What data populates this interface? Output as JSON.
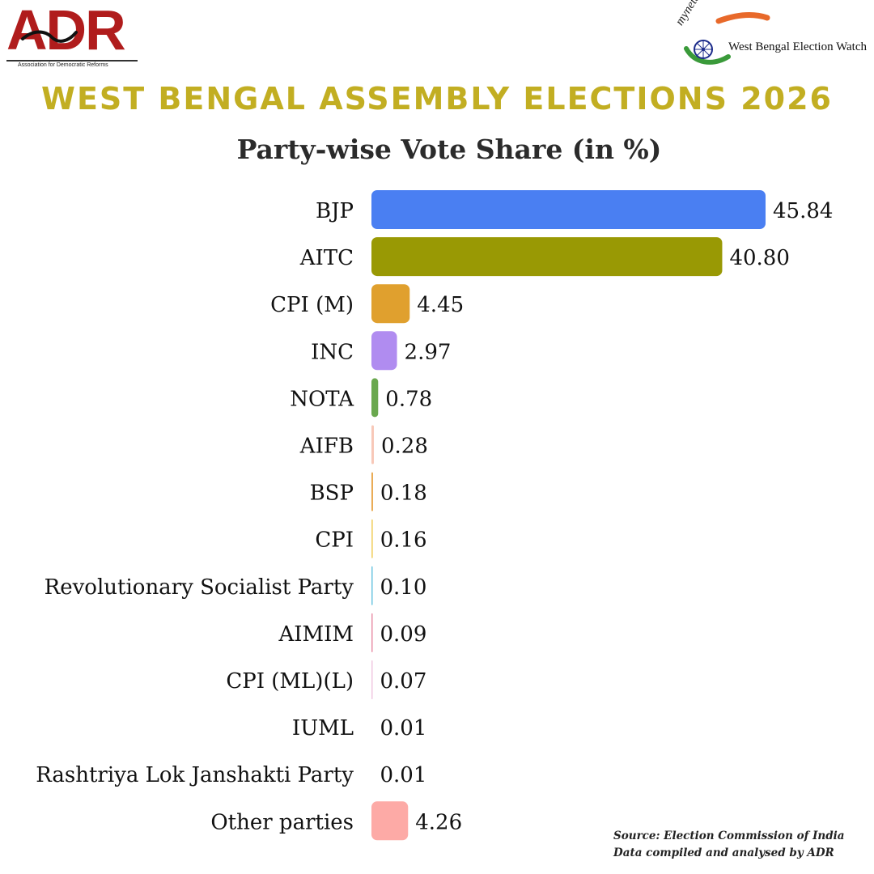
{
  "logos": {
    "adr": {
      "letters": "ADR",
      "tagline": "Association for Democratic Reforms",
      "color": "#b01c1c"
    },
    "myneta": {
      "brand": "myneta.info",
      "title": "West Bengal Election Watch",
      "color_saffron": "#e8692a",
      "color_green": "#3a9a3a",
      "color_navy": "#1a2a8a"
    }
  },
  "header": {
    "title": "WEST BENGAL ASSEMBLY ELECTIONS 2026",
    "title_color": "#c2ae22"
  },
  "chart_data": {
    "type": "bar",
    "orientation": "horizontal",
    "title": "Party-wise Vote Share (in %)",
    "xlabel": "",
    "ylabel": "",
    "xlim": [
      0,
      45.84
    ],
    "grid": false,
    "legend": "none",
    "categories": [
      "BJP",
      "AITC",
      "CPI (M)",
      "INC",
      "NOTA",
      "AIFB",
      "BSP",
      "CPI",
      "Revolutionary Socialist Party",
      "AIMIM",
      "CPI (ML)(L)",
      "IUML",
      "Rashtriya Lok Janshakti Party",
      "Other parties"
    ],
    "values": [
      45.84,
      40.8,
      4.45,
      2.97,
      0.78,
      0.28,
      0.18,
      0.16,
      0.1,
      0.09,
      0.07,
      0.01,
      0.01,
      4.26
    ],
    "value_labels": [
      "45.84",
      "40.80",
      "4.45",
      "2.97",
      "0.78",
      "0.28",
      "0.18",
      "0.16",
      "0.10",
      "0.09",
      "0.07",
      "0.01",
      "0.01",
      "4.26"
    ],
    "colors": [
      "#4a7ff2",
      "#999904",
      "#e0a02e",
      "#b08cf0",
      "#6aa84f",
      "#f8c8b8",
      "#e8a64a",
      "#f2d36b",
      "#6ec6e0",
      "#e890a8",
      "#f0c8e0",
      "#ffffff",
      "#ffffff",
      "#fdaaa6"
    ]
  },
  "footer": {
    "source_line": "Source: Election Commission of India",
    "compiled_line": "Data compiled and analysed by ADR"
  }
}
